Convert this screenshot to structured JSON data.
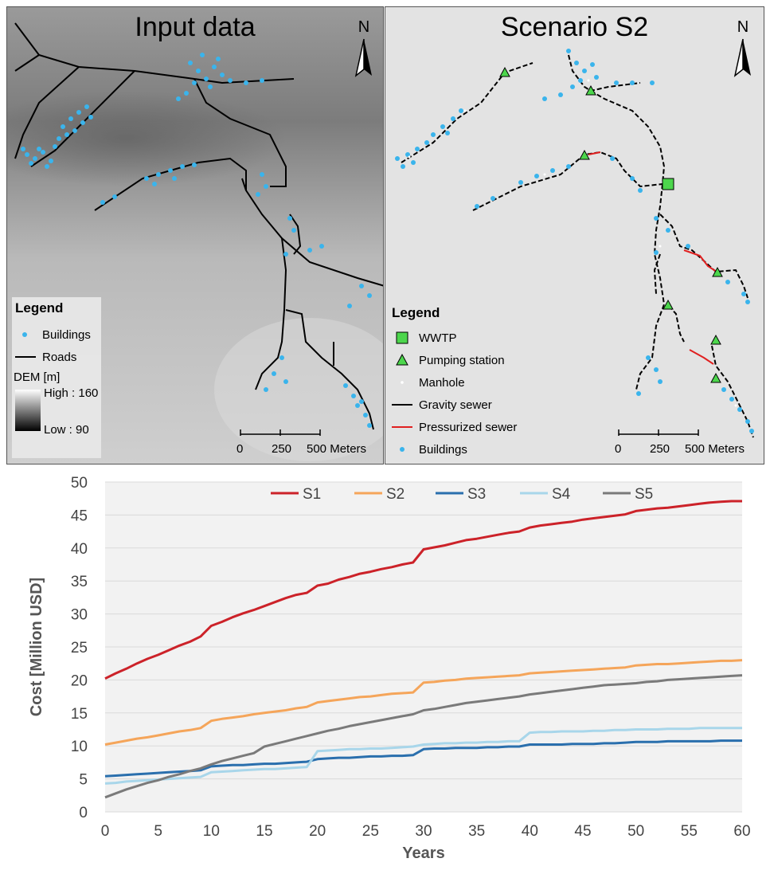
{
  "left_panel": {
    "title": "Input data",
    "north_label": "N",
    "legend": {
      "title": "Legend",
      "buildings": "Buildings",
      "roads": "Roads",
      "dem_label": "DEM [m]",
      "high": "High : 160",
      "low": "Low : 90"
    },
    "scale": {
      "t0": "0",
      "t1": "250",
      "t2": "500 Meters"
    }
  },
  "right_panel": {
    "title": "Scenario S2",
    "north_label": "N",
    "legend": {
      "title": "Legend",
      "wwtp": "WWTP",
      "pumping": "Pumping station",
      "manhole": "Manhole",
      "gravity": "Gravity sewer",
      "pressurized": "Pressurized sewer",
      "buildings": "Buildings"
    },
    "scale": {
      "t0": "0",
      "t1": "250",
      "t2": "500 Meters"
    }
  },
  "colors": {
    "building": "#3ab4ec",
    "pump": "#4cd64c",
    "pressurized": "#e02020",
    "S1": "#cc2229",
    "S2": "#f5a55a",
    "S3": "#2a6fad",
    "S4": "#a8d6ea",
    "S5": "#7a7a7a"
  },
  "chart_data": {
    "type": "line",
    "xlabel": "Years",
    "ylabel": "Cost  [Million USD]",
    "xlim": [
      0,
      60
    ],
    "ylim": [
      0,
      50
    ],
    "xticks": [
      0,
      5,
      10,
      15,
      20,
      25,
      30,
      35,
      40,
      45,
      50,
      55,
      60
    ],
    "yticks": [
      0,
      5,
      10,
      15,
      20,
      25,
      30,
      35,
      40,
      45,
      50
    ],
    "grid": true,
    "legend": "top",
    "series": [
      {
        "name": "S1",
        "color": "#cc2229",
        "points": [
          [
            0,
            20.2
          ],
          [
            1,
            21
          ],
          [
            2,
            21.7
          ],
          [
            3,
            22.5
          ],
          [
            4,
            23.2
          ],
          [
            5,
            23.8
          ],
          [
            6,
            24.5
          ],
          [
            7,
            25.2
          ],
          [
            8,
            25.8
          ],
          [
            9,
            26.6
          ],
          [
            10,
            28.2
          ],
          [
            11,
            28.8
          ],
          [
            12,
            29.5
          ],
          [
            13,
            30.1
          ],
          [
            14,
            30.6
          ],
          [
            15,
            31.2
          ],
          [
            16,
            31.8
          ],
          [
            17,
            32.4
          ],
          [
            18,
            32.9
          ],
          [
            19,
            33.2
          ],
          [
            20,
            34.3
          ],
          [
            21,
            34.6
          ],
          [
            22,
            35.2
          ],
          [
            23,
            35.6
          ],
          [
            24,
            36.1
          ],
          [
            25,
            36.4
          ],
          [
            26,
            36.8
          ],
          [
            27,
            37.1
          ],
          [
            28,
            37.5
          ],
          [
            29,
            37.8
          ],
          [
            30,
            39.8
          ],
          [
            31,
            40.1
          ],
          [
            32,
            40.4
          ],
          [
            33,
            40.8
          ],
          [
            34,
            41.2
          ],
          [
            35,
            41.4
          ],
          [
            36,
            41.7
          ],
          [
            37,
            42
          ],
          [
            38,
            42.3
          ],
          [
            39,
            42.5
          ],
          [
            40,
            43.1
          ],
          [
            41,
            43.4
          ],
          [
            42,
            43.6
          ],
          [
            43,
            43.8
          ],
          [
            44,
            44
          ],
          [
            45,
            44.3
          ],
          [
            46,
            44.5
          ],
          [
            47,
            44.7
          ],
          [
            48,
            44.9
          ],
          [
            49,
            45.1
          ],
          [
            50,
            45.6
          ],
          [
            51,
            45.8
          ],
          [
            52,
            46
          ],
          [
            53,
            46.1
          ],
          [
            54,
            46.3
          ],
          [
            55,
            46.5
          ],
          [
            56,
            46.7
          ],
          [
            57,
            46.9
          ],
          [
            58,
            47
          ],
          [
            59,
            47.1
          ],
          [
            60,
            47.1
          ]
        ]
      },
      {
        "name": "S2",
        "color": "#f5a55a",
        "points": [
          [
            0,
            10.2
          ],
          [
            1,
            10.5
          ],
          [
            2,
            10.8
          ],
          [
            3,
            11.1
          ],
          [
            4,
            11.3
          ],
          [
            5,
            11.6
          ],
          [
            6,
            11.9
          ],
          [
            7,
            12.2
          ],
          [
            8,
            12.4
          ],
          [
            9,
            12.7
          ],
          [
            10,
            13.8
          ],
          [
            11,
            14.1
          ],
          [
            12,
            14.3
          ],
          [
            13,
            14.5
          ],
          [
            14,
            14.8
          ],
          [
            15,
            15
          ],
          [
            16,
            15.2
          ],
          [
            17,
            15.4
          ],
          [
            18,
            15.7
          ],
          [
            19,
            15.9
          ],
          [
            20,
            16.6
          ],
          [
            21,
            16.8
          ],
          [
            22,
            17
          ],
          [
            23,
            17.2
          ],
          [
            24,
            17.4
          ],
          [
            25,
            17.5
          ],
          [
            26,
            17.7
          ],
          [
            27,
            17.9
          ],
          [
            28,
            18
          ],
          [
            29,
            18.1
          ],
          [
            30,
            19.6
          ],
          [
            31,
            19.7
          ],
          [
            32,
            19.9
          ],
          [
            33,
            20
          ],
          [
            34,
            20.2
          ],
          [
            35,
            20.3
          ],
          [
            36,
            20.4
          ],
          [
            37,
            20.5
          ],
          [
            38,
            20.6
          ],
          [
            39,
            20.7
          ],
          [
            40,
            21
          ],
          [
            41,
            21.1
          ],
          [
            42,
            21.2
          ],
          [
            43,
            21.3
          ],
          [
            44,
            21.4
          ],
          [
            45,
            21.5
          ],
          [
            46,
            21.6
          ],
          [
            47,
            21.7
          ],
          [
            48,
            21.8
          ],
          [
            49,
            21.9
          ],
          [
            50,
            22.2
          ],
          [
            51,
            22.3
          ],
          [
            52,
            22.4
          ],
          [
            53,
            22.4
          ],
          [
            54,
            22.5
          ],
          [
            55,
            22.6
          ],
          [
            56,
            22.7
          ],
          [
            57,
            22.8
          ],
          [
            58,
            22.9
          ],
          [
            59,
            22.9
          ],
          [
            60,
            23
          ]
        ]
      },
      {
        "name": "S3",
        "color": "#2a6fad",
        "points": [
          [
            0,
            5.4
          ],
          [
            1,
            5.5
          ],
          [
            2,
            5.6
          ],
          [
            3,
            5.7
          ],
          [
            4,
            5.8
          ],
          [
            5,
            5.9
          ],
          [
            6,
            6
          ],
          [
            7,
            6.1
          ],
          [
            8,
            6.2
          ],
          [
            9,
            6.3
          ],
          [
            10,
            6.9
          ],
          [
            11,
            7
          ],
          [
            12,
            7.1
          ],
          [
            13,
            7.1
          ],
          [
            14,
            7.2
          ],
          [
            15,
            7.3
          ],
          [
            16,
            7.3
          ],
          [
            17,
            7.4
          ],
          [
            18,
            7.5
          ],
          [
            19,
            7.6
          ],
          [
            20,
            8
          ],
          [
            21,
            8.1
          ],
          [
            22,
            8.2
          ],
          [
            23,
            8.2
          ],
          [
            24,
            8.3
          ],
          [
            25,
            8.4
          ],
          [
            26,
            8.4
          ],
          [
            27,
            8.5
          ],
          [
            28,
            8.5
          ],
          [
            29,
            8.6
          ],
          [
            30,
            9.5
          ],
          [
            31,
            9.6
          ],
          [
            32,
            9.6
          ],
          [
            33,
            9.7
          ],
          [
            34,
            9.7
          ],
          [
            35,
            9.7
          ],
          [
            36,
            9.8
          ],
          [
            37,
            9.8
          ],
          [
            38,
            9.9
          ],
          [
            39,
            9.9
          ],
          [
            40,
            10.2
          ],
          [
            41,
            10.2
          ],
          [
            42,
            10.2
          ],
          [
            43,
            10.2
          ],
          [
            44,
            10.3
          ],
          [
            45,
            10.3
          ],
          [
            46,
            10.3
          ],
          [
            47,
            10.4
          ],
          [
            48,
            10.4
          ],
          [
            49,
            10.5
          ],
          [
            50,
            10.6
          ],
          [
            51,
            10.6
          ],
          [
            52,
            10.6
          ],
          [
            53,
            10.7
          ],
          [
            54,
            10.7
          ],
          [
            55,
            10.7
          ],
          [
            56,
            10.7
          ],
          [
            57,
            10.7
          ],
          [
            58,
            10.8
          ],
          [
            59,
            10.8
          ],
          [
            60,
            10.8
          ]
        ]
      },
      {
        "name": "S4",
        "color": "#a8d6ea",
        "points": [
          [
            0,
            4.3
          ],
          [
            1,
            4.4
          ],
          [
            2,
            4.6
          ],
          [
            3,
            4.7
          ],
          [
            4,
            4.8
          ],
          [
            5,
            4.9
          ],
          [
            6,
            5
          ],
          [
            7,
            5.1
          ],
          [
            8,
            5.2
          ],
          [
            9,
            5.3
          ],
          [
            10,
            6
          ],
          [
            11,
            6.1
          ],
          [
            12,
            6.2
          ],
          [
            13,
            6.3
          ],
          [
            14,
            6.4
          ],
          [
            15,
            6.5
          ],
          [
            16,
            6.5
          ],
          [
            17,
            6.6
          ],
          [
            18,
            6.7
          ],
          [
            19,
            6.8
          ],
          [
            20,
            9.2
          ],
          [
            21,
            9.3
          ],
          [
            22,
            9.4
          ],
          [
            23,
            9.5
          ],
          [
            24,
            9.5
          ],
          [
            25,
            9.6
          ],
          [
            26,
            9.6
          ],
          [
            27,
            9.7
          ],
          [
            28,
            9.8
          ],
          [
            29,
            9.9
          ],
          [
            30,
            10.2
          ],
          [
            31,
            10.3
          ],
          [
            32,
            10.4
          ],
          [
            33,
            10.4
          ],
          [
            34,
            10.5
          ],
          [
            35,
            10.5
          ],
          [
            36,
            10.6
          ],
          [
            37,
            10.6
          ],
          [
            38,
            10.7
          ],
          [
            39,
            10.7
          ],
          [
            40,
            12
          ],
          [
            41,
            12.1
          ],
          [
            42,
            12.1
          ],
          [
            43,
            12.2
          ],
          [
            44,
            12.2
          ],
          [
            45,
            12.2
          ],
          [
            46,
            12.3
          ],
          [
            47,
            12.3
          ],
          [
            48,
            12.4
          ],
          [
            49,
            12.4
          ],
          [
            50,
            12.5
          ],
          [
            51,
            12.5
          ],
          [
            52,
            12.5
          ],
          [
            53,
            12.6
          ],
          [
            54,
            12.6
          ],
          [
            55,
            12.6
          ],
          [
            56,
            12.7
          ],
          [
            57,
            12.7
          ],
          [
            58,
            12.7
          ],
          [
            59,
            12.7
          ],
          [
            60,
            12.7
          ]
        ]
      },
      {
        "name": "S5",
        "color": "#7a7a7a",
        "points": [
          [
            0,
            2.2
          ],
          [
            1,
            2.8
          ],
          [
            2,
            3.4
          ],
          [
            3,
            3.9
          ],
          [
            4,
            4.4
          ],
          [
            5,
            4.8
          ],
          [
            6,
            5.3
          ],
          [
            7,
            5.7
          ],
          [
            8,
            6.2
          ],
          [
            9,
            6.6
          ],
          [
            10,
            7.2
          ],
          [
            11,
            7.7
          ],
          [
            12,
            8.1
          ],
          [
            13,
            8.5
          ],
          [
            14,
            8.9
          ],
          [
            15,
            9.9
          ],
          [
            16,
            10.3
          ],
          [
            17,
            10.7
          ],
          [
            18,
            11.1
          ],
          [
            19,
            11.5
          ],
          [
            20,
            11.9
          ],
          [
            21,
            12.3
          ],
          [
            22,
            12.6
          ],
          [
            23,
            13
          ],
          [
            24,
            13.3
          ],
          [
            25,
            13.6
          ],
          [
            26,
            13.9
          ],
          [
            27,
            14.2
          ],
          [
            28,
            14.5
          ],
          [
            29,
            14.8
          ],
          [
            30,
            15.4
          ],
          [
            31,
            15.6
          ],
          [
            32,
            15.9
          ],
          [
            33,
            16.2
          ],
          [
            34,
            16.5
          ],
          [
            35,
            16.7
          ],
          [
            36,
            16.9
          ],
          [
            37,
            17.1
          ],
          [
            38,
            17.3
          ],
          [
            39,
            17.5
          ],
          [
            40,
            17.8
          ],
          [
            41,
            18
          ],
          [
            42,
            18.2
          ],
          [
            43,
            18.4
          ],
          [
            44,
            18.6
          ],
          [
            45,
            18.8
          ],
          [
            46,
            19
          ],
          [
            47,
            19.2
          ],
          [
            48,
            19.3
          ],
          [
            49,
            19.4
          ],
          [
            50,
            19.5
          ],
          [
            51,
            19.7
          ],
          [
            52,
            19.8
          ],
          [
            53,
            20
          ],
          [
            54,
            20.1
          ],
          [
            55,
            20.2
          ],
          [
            56,
            20.3
          ],
          [
            57,
            20.4
          ],
          [
            58,
            20.5
          ],
          [
            59,
            20.6
          ],
          [
            60,
            20.7
          ]
        ]
      }
    ]
  }
}
